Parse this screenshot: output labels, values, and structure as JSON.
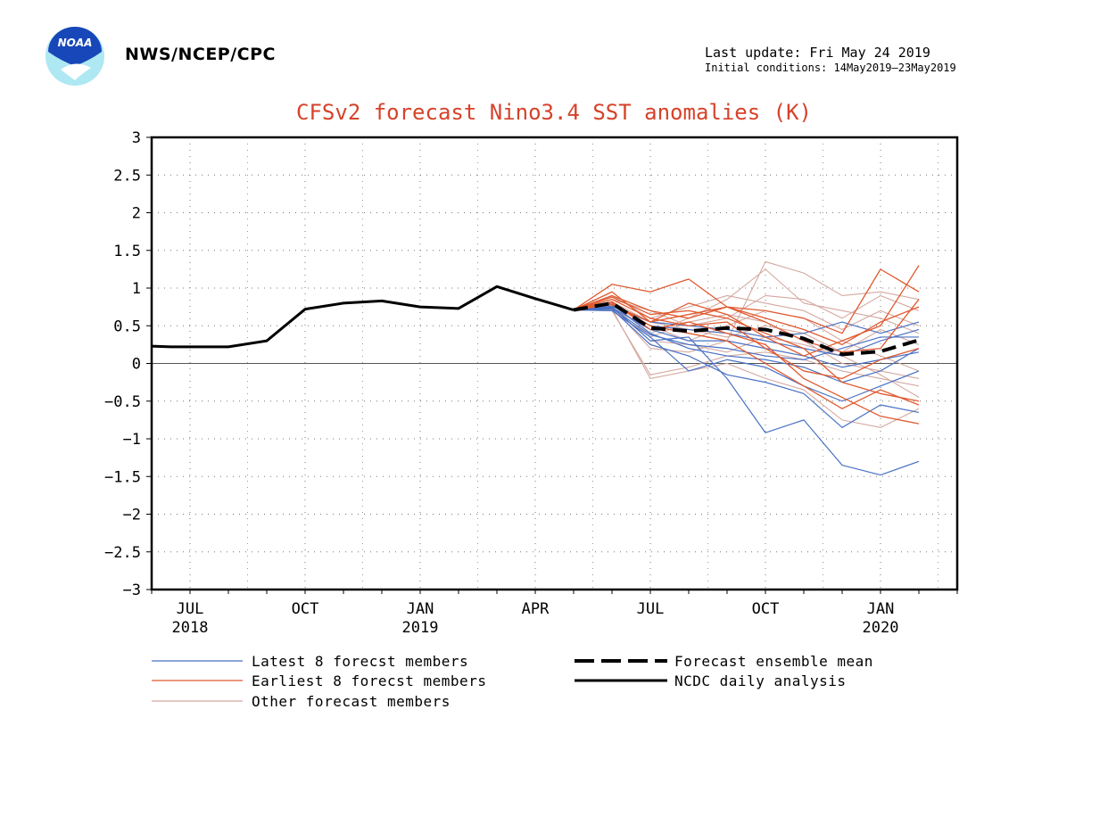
{
  "header": {
    "agency": "NWS/NCEP/CPC",
    "last_update": "Last update: Fri May 24 2019",
    "initial_conditions": "Initial conditions: 14May2019–23May2019",
    "logo_text": "NOAA"
  },
  "chart_data": {
    "type": "line",
    "title": "CFSv2 forecast Nino3.4 SST anomalies (K)",
    "ylim": [
      -3,
      3
    ],
    "y_ticks": [
      "3",
      "2.5",
      "2",
      "1.5",
      "1",
      "0.5",
      "0",
      "−0.5",
      "−1",
      "−1.5",
      "−2",
      "−2.5",
      "−3"
    ],
    "x_ticks": [
      {
        "month": "JUL",
        "year": "2018",
        "idx": 1
      },
      {
        "month": "OCT",
        "year": "",
        "idx": 4
      },
      {
        "month": "JAN",
        "year": "2019",
        "idx": 7
      },
      {
        "month": "APR",
        "year": "",
        "idx": 10
      },
      {
        "month": "JUL",
        "year": "",
        "idx": 13
      },
      {
        "month": "OCT",
        "year": "",
        "idx": 16
      },
      {
        "month": "JAN",
        "year": "2020",
        "idx": 19
      }
    ],
    "grid": true,
    "x_range": [
      0,
      21.4
    ],
    "ncdc_daily_analysis": {
      "x": [
        0,
        0.5,
        1.05,
        2,
        3,
        4,
        5,
        6,
        7,
        8,
        9,
        10,
        11
      ],
      "y": [
        0.23,
        0.22,
        0.22,
        0.22,
        0.3,
        0.72,
        0.8,
        0.83,
        0.75,
        0.73,
        1.02,
        0.86,
        0.71
      ]
    },
    "forecast_ensemble_mean": {
      "x": [
        11,
        12,
        13,
        14,
        15,
        16,
        17,
        18,
        19,
        20
      ],
      "y": [
        0.71,
        0.8,
        0.47,
        0.43,
        0.47,
        0.45,
        0.33,
        0.12,
        0.16,
        0.31
      ]
    },
    "forecast_x": [
      11,
      12,
      13,
      14,
      15,
      16,
      17,
      18,
      19,
      20
    ],
    "latest_8_members": [
      [
        0.71,
        0.75,
        0.3,
        0.35,
        -0.2,
        -0.92,
        -0.75,
        -1.35,
        -1.48,
        -1.3
      ],
      [
        0.71,
        0.72,
        0.25,
        0.1,
        -0.15,
        -0.25,
        -0.4,
        -0.85,
        -0.55,
        -0.65
      ],
      [
        0.71,
        0.7,
        0.35,
        -0.1,
        0.05,
        -0.05,
        -0.3,
        -0.5,
        -0.3,
        -0.1
      ],
      [
        0.71,
        0.78,
        0.4,
        0.2,
        0.1,
        0.05,
        -0.05,
        -0.25,
        -0.1,
        0.2
      ],
      [
        0.71,
        0.74,
        0.45,
        0.3,
        0.3,
        0.2,
        0.1,
        -0.05,
        0.05,
        0.15
      ],
      [
        0.71,
        0.8,
        0.5,
        0.45,
        0.4,
        0.3,
        0.2,
        0.1,
        0.3,
        0.45
      ],
      [
        0.71,
        0.76,
        0.55,
        0.5,
        0.45,
        0.35,
        0.4,
        0.55,
        0.4,
        0.55
      ],
      [
        0.71,
        0.73,
        0.38,
        0.25,
        0.2,
        0.1,
        0.05,
        0.2,
        0.35,
        0.35
      ]
    ],
    "earliest_8_members": [
      [
        0.71,
        1.05,
        0.95,
        1.12,
        0.75,
        0.7,
        0.6,
        0.4,
        1.25,
        0.95
      ],
      [
        0.71,
        0.95,
        0.55,
        0.8,
        0.65,
        0.35,
        0.1,
        0.3,
        0.5,
        1.3
      ],
      [
        0.71,
        0.9,
        0.7,
        0.6,
        0.75,
        0.55,
        0.3,
        0.15,
        0.2,
        0.85
      ],
      [
        0.71,
        0.85,
        0.6,
        0.5,
        0.55,
        0.2,
        -0.1,
        -0.2,
        0.05,
        0.2
      ],
      [
        0.71,
        0.8,
        0.5,
        0.4,
        0.3,
        0.0,
        -0.3,
        -0.6,
        -0.35,
        -0.55
      ],
      [
        0.71,
        0.82,
        0.45,
        0.55,
        0.4,
        0.25,
        -0.2,
        -0.45,
        -0.7,
        -0.8
      ],
      [
        0.71,
        0.88,
        0.65,
        0.7,
        0.6,
        0.4,
        0.2,
        -0.25,
        -0.4,
        -0.5
      ],
      [
        0.71,
        0.78,
        0.55,
        0.65,
        0.75,
        0.6,
        0.45,
        0.25,
        0.55,
        0.75
      ]
    ],
    "other_members": [
      [
        0.71,
        0.7,
        -0.15,
        -0.05,
        0.1,
        0.15,
        0.05,
        -0.1,
        -0.2,
        -0.3
      ],
      [
        0.71,
        0.75,
        0.2,
        0.15,
        0.3,
        1.35,
        1.2,
        0.9,
        0.95,
        0.85
      ],
      [
        0.71,
        0.8,
        0.4,
        0.6,
        0.85,
        1.25,
        0.8,
        0.7,
        0.6,
        0.4
      ],
      [
        0.71,
        0.72,
        -0.2,
        -0.1,
        0.0,
        -0.2,
        -0.35,
        -0.75,
        -0.85,
        -0.6
      ],
      [
        0.71,
        0.85,
        0.7,
        0.5,
        0.6,
        0.9,
        0.85,
        0.6,
        0.9,
        0.7
      ],
      [
        0.71,
        0.78,
        0.5,
        0.3,
        0.5,
        0.7,
        0.6,
        0.3,
        0.1,
        -0.1
      ],
      [
        0.71,
        0.74,
        0.3,
        0.25,
        0.15,
        0.35,
        0.25,
        0.1,
        -0.15,
        -0.45
      ],
      [
        0.71,
        0.9,
        0.6,
        0.75,
        0.9,
        0.8,
        0.7,
        0.45,
        0.7,
        0.5
      ],
      [
        0.71,
        0.82,
        0.55,
        0.45,
        0.35,
        0.5,
        0.4,
        0.15,
        0.45,
        0.25
      ],
      [
        0.71,
        0.76,
        0.35,
        0.55,
        0.65,
        0.55,
        0.3,
        0.0,
        -0.1,
        -0.2
      ]
    ],
    "colors": {
      "latest": "#4a72c4",
      "earliest": "#e05a30",
      "other": "#d4a8a0",
      "mean": "#000000",
      "analysis": "#000000",
      "title": "#d6422a"
    },
    "legend": {
      "latest": "Latest 8 forecst members",
      "earliest": "Earliest 8 forecst members",
      "other": "Other forecast members",
      "mean": "Forecast ensemble mean",
      "analysis": "NCDC daily analysis"
    }
  }
}
